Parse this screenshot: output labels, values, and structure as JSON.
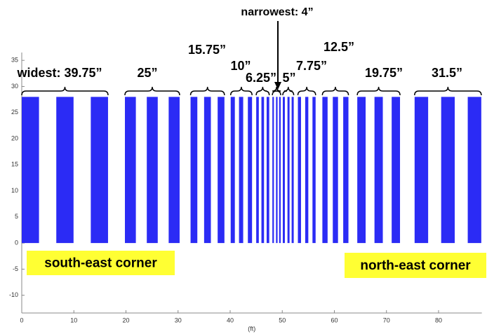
{
  "chart_data": {
    "type": "stripes",
    "x_label": "(ft)",
    "x_start": [
      0,
      6.63,
      13.25,
      19.8,
      24.0,
      28.2,
      32.4,
      35.0,
      37.6,
      40.1,
      41.7,
      43.4,
      45.0,
      46.0,
      47.0,
      48.1,
      48.8,
      49.4,
      50.1,
      51.0,
      51.8,
      53.0,
      54.4,
      55.8,
      57.7,
      59.7,
      61.7,
      64.4,
      67.7,
      71.0,
      75.4,
      80.5,
      85.6
    ],
    "x_end": [
      3.31,
      9.94,
      16.56,
      21.9,
      26.1,
      30.3,
      33.7,
      36.3,
      38.9,
      40.9,
      42.5,
      44.2,
      45.5,
      46.5,
      47.5,
      48.4,
      49.1,
      49.7,
      50.5,
      51.4,
      52.2,
      53.6,
      55.0,
      56.4,
      58.7,
      60.7,
      62.7,
      66.0,
      69.3,
      72.6,
      78.0,
      83.1,
      88.2
    ],
    "values": [
      28,
      28,
      28,
      28,
      28,
      28,
      28,
      28,
      28,
      28,
      28,
      28,
      28,
      28,
      28,
      28,
      28,
      28,
      28,
      28,
      28,
      28,
      28,
      28,
      28,
      28,
      28,
      28,
      28,
      28,
      28,
      28,
      28
    ],
    "color": "#2b2bf5",
    "xlim": [
      0,
      88.3
    ],
    "xticks": [
      0,
      10,
      20,
      30,
      40,
      50,
      60,
      70,
      80
    ],
    "ylim": [
      -13.4,
      36.5
    ],
    "yticks": [
      -10,
      -5,
      0,
      5,
      10,
      15,
      20,
      25,
      30,
      35
    ],
    "annotations": [
      "widest: 39.75”",
      "25”",
      "15.75”",
      "10”",
      "6.25”",
      "narrowest: 4”",
      "5”",
      "7.75”",
      "12.5”",
      "19.75”",
      "31.5”"
    ],
    "corner_labels": [
      "south-east corner",
      "north-east corner"
    ]
  }
}
